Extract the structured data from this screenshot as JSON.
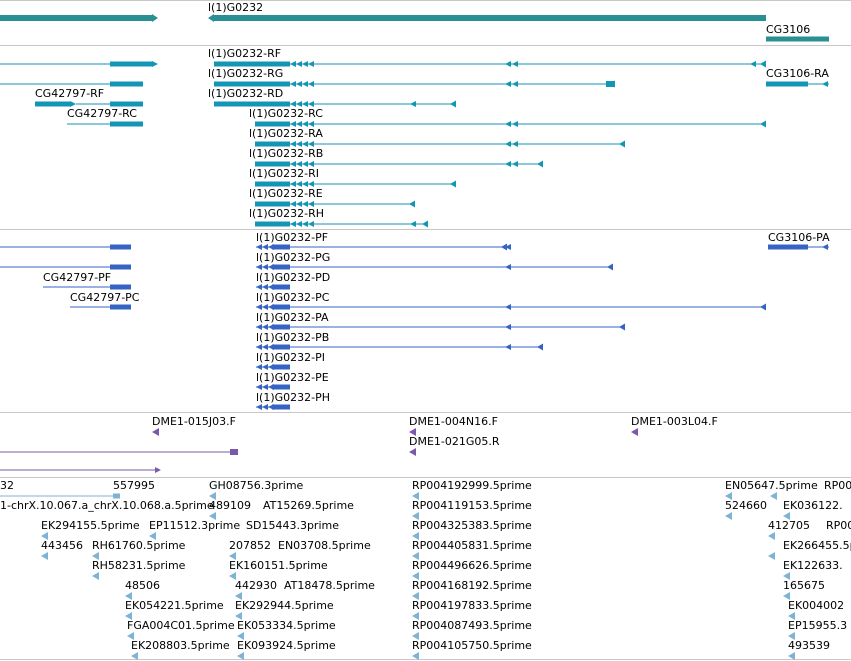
{
  "view": {
    "track_colors": {
      "gene": "#2a8f94",
      "transcript": "#1396b5",
      "protein": "#3564c4",
      "clone": "#7a5aa8",
      "est": "#7fb3d6"
    },
    "tracks": [
      {
        "name": "genes",
        "label_items": [
          "l(1)G0232",
          "CG3106"
        ]
      },
      {
        "name": "transcripts"
      },
      {
        "name": "proteins"
      },
      {
        "name": "clones"
      },
      {
        "name": "est"
      }
    ]
  },
  "genes": {
    "labels": [
      {
        "id": "gene-l1g0232",
        "text": "l(1)G0232"
      },
      {
        "id": "gene-cg3106",
        "text": "CG3106"
      }
    ]
  },
  "transcripts": {
    "labels": [
      {
        "id": "tx-rf",
        "text": "l(1)G0232-RF"
      },
      {
        "id": "tx-rg",
        "text": "l(1)G0232-RG"
      },
      {
        "id": "tx-cg42797-rf",
        "text": "CG42797-RF"
      },
      {
        "id": "tx-rd",
        "text": "l(1)G0232-RD"
      },
      {
        "id": "tx-cg42797-rc",
        "text": "CG42797-RC"
      },
      {
        "id": "tx-rc",
        "text": "l(1)G0232-RC"
      },
      {
        "id": "tx-ra",
        "text": "l(1)G0232-RA"
      },
      {
        "id": "tx-rb",
        "text": "l(1)G0232-RB"
      },
      {
        "id": "tx-ri",
        "text": "l(1)G0232-RI"
      },
      {
        "id": "tx-re",
        "text": "l(1)G0232-RE"
      },
      {
        "id": "tx-rh",
        "text": "l(1)G0232-RH"
      },
      {
        "id": "tx-cg3106-ra",
        "text": "CG3106-RA"
      }
    ]
  },
  "proteins": {
    "labels": [
      {
        "id": "pp-pf",
        "text": "l(1)G0232-PF"
      },
      {
        "id": "pp-cg3106-pa",
        "text": "CG3106-PA"
      },
      {
        "id": "pp-pg",
        "text": "l(1)G0232-PG"
      },
      {
        "id": "pp-cg42797-pf",
        "text": "CG42797-PF"
      },
      {
        "id": "pp-pd",
        "text": "l(1)G0232-PD"
      },
      {
        "id": "pp-cg42797-pc",
        "text": "CG42797-PC"
      },
      {
        "id": "pp-pc",
        "text": "l(1)G0232-PC"
      },
      {
        "id": "pp-pa",
        "text": "l(1)G0232-PA"
      },
      {
        "id": "pp-pb",
        "text": "l(1)G0232-PB"
      },
      {
        "id": "pp-pi",
        "text": "l(1)G0232-PI"
      },
      {
        "id": "pp-pe",
        "text": "l(1)G0232-PE"
      },
      {
        "id": "pp-ph",
        "text": "l(1)G0232-PH"
      }
    ]
  },
  "clones": {
    "labels": [
      {
        "id": "cl-015j03",
        "text": "DME1-015J03.F"
      },
      {
        "id": "cl-004n16",
        "text": "DME1-004N16.F"
      },
      {
        "id": "cl-003l04",
        "text": "DME1-003L04.F"
      },
      {
        "id": "cl-021g05",
        "text": "DME1-021G05.R"
      }
    ]
  },
  "est": {
    "labels": [
      {
        "id": "est-32",
        "text": "32"
      },
      {
        "id": "est-557995",
        "text": "557995"
      },
      {
        "id": "est-gh08756",
        "text": "GH08756.3prime"
      },
      {
        "id": "est-rp004192999",
        "text": "RP004192999.5prime"
      },
      {
        "id": "est-en05647",
        "text": "EN05647.5prime"
      },
      {
        "id": "est-rp00-a",
        "text": "RP00"
      },
      {
        "id": "est-chrx",
        "text": "1-chrX.10.067.a_chrX.10.068.a.5prime"
      },
      {
        "id": "est-489109",
        "text": "489109"
      },
      {
        "id": "est-at15269",
        "text": "AT15269.5prime"
      },
      {
        "id": "est-rp004119153",
        "text": "RP004119153.5prime"
      },
      {
        "id": "est-524660",
        "text": "524660"
      },
      {
        "id": "est-ek036122",
        "text": "EK036122."
      },
      {
        "id": "est-ek294155",
        "text": "EK294155.5prime"
      },
      {
        "id": "est-ep11512",
        "text": "EP11512.3prime"
      },
      {
        "id": "est-sd15443",
        "text": "SD15443.3prime"
      },
      {
        "id": "est-rp004325383",
        "text": "RP004325383.5prime"
      },
      {
        "id": "est-412705",
        "text": "412705"
      },
      {
        "id": "est-rp00-b",
        "text": "RP00"
      },
      {
        "id": "est-443456",
        "text": "443456"
      },
      {
        "id": "est-rh61760",
        "text": "RH61760.5prime"
      },
      {
        "id": "est-207852",
        "text": "207852"
      },
      {
        "id": "est-en03708",
        "text": "EN03708.5prime"
      },
      {
        "id": "est-rp004405831",
        "text": "RP004405831.5prime"
      },
      {
        "id": "est-ek266455",
        "text": "EK266455.5pr"
      },
      {
        "id": "est-rh58231",
        "text": "RH58231.5prime"
      },
      {
        "id": "est-ek160151",
        "text": "EK160151.5prime"
      },
      {
        "id": "est-rp004496626",
        "text": "RP004496626.5prime"
      },
      {
        "id": "est-ek122633",
        "text": "EK122633."
      },
      {
        "id": "est-48506",
        "text": "48506"
      },
      {
        "id": "est-442930",
        "text": "442930"
      },
      {
        "id": "est-at18478",
        "text": "AT18478.5prime"
      },
      {
        "id": "est-rp004168192",
        "text": "RP004168192.5prime"
      },
      {
        "id": "est-165675",
        "text": "165675"
      },
      {
        "id": "est-ek054221",
        "text": "EK054221.5prime"
      },
      {
        "id": "est-ek292944",
        "text": "EK292944.5prime"
      },
      {
        "id": "est-rp004197833",
        "text": "RP004197833.5prime"
      },
      {
        "id": "est-ek004002",
        "text": "EK004002"
      },
      {
        "id": "est-fga004c01",
        "text": "FGA004C01.5prime"
      },
      {
        "id": "est-ek053334",
        "text": "EK053334.5prime"
      },
      {
        "id": "est-rp004087493",
        "text": "RP004087493.5prime"
      },
      {
        "id": "est-ep15955",
        "text": "EP15955.3"
      },
      {
        "id": "est-ek208803",
        "text": "EK208803.5prime"
      },
      {
        "id": "est-ek093924",
        "text": "EK093924.5prime"
      },
      {
        "id": "est-rp004105750",
        "text": "RP004105750.5prime"
      },
      {
        "id": "est-493539",
        "text": "493539"
      }
    ]
  }
}
